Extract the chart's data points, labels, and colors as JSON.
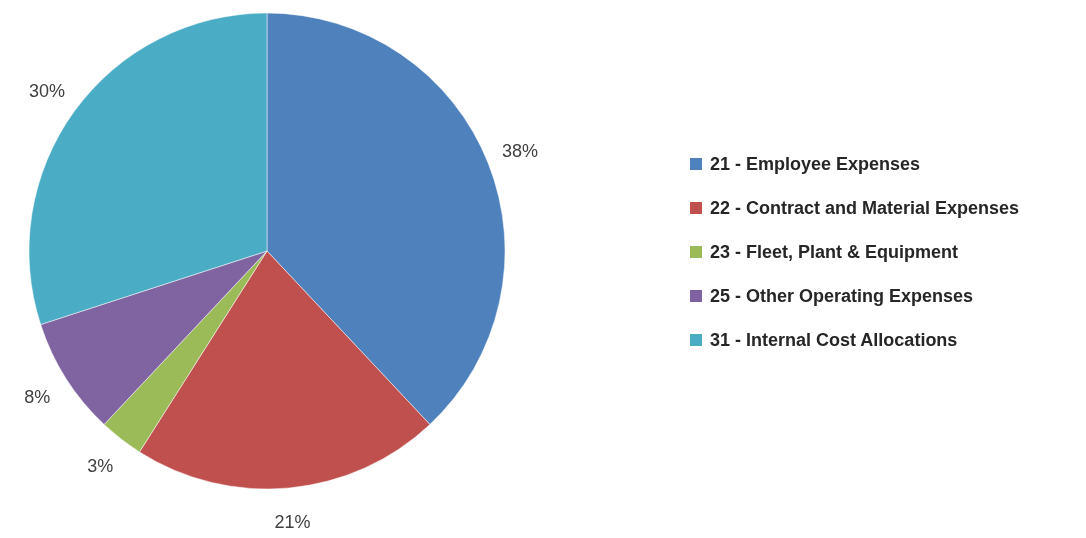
{
  "chart_data": {
    "type": "pie",
    "categories": [
      "21 - Employee Expenses",
      "22 - Contract and Material Expenses",
      "23 - Fleet, Plant & Equipment",
      "25 - Other Operating Expenses",
      "31 - Internal Cost Allocations"
    ],
    "values": [
      38,
      21,
      3,
      8,
      30
    ],
    "colors": [
      "#4f81bd",
      "#c0504d",
      "#9bbb59",
      "#8064a2",
      "#4bacc6"
    ],
    "value_labels": [
      "38%",
      "21%",
      "3%",
      "8%",
      "30%"
    ],
    "legend": "right"
  }
}
